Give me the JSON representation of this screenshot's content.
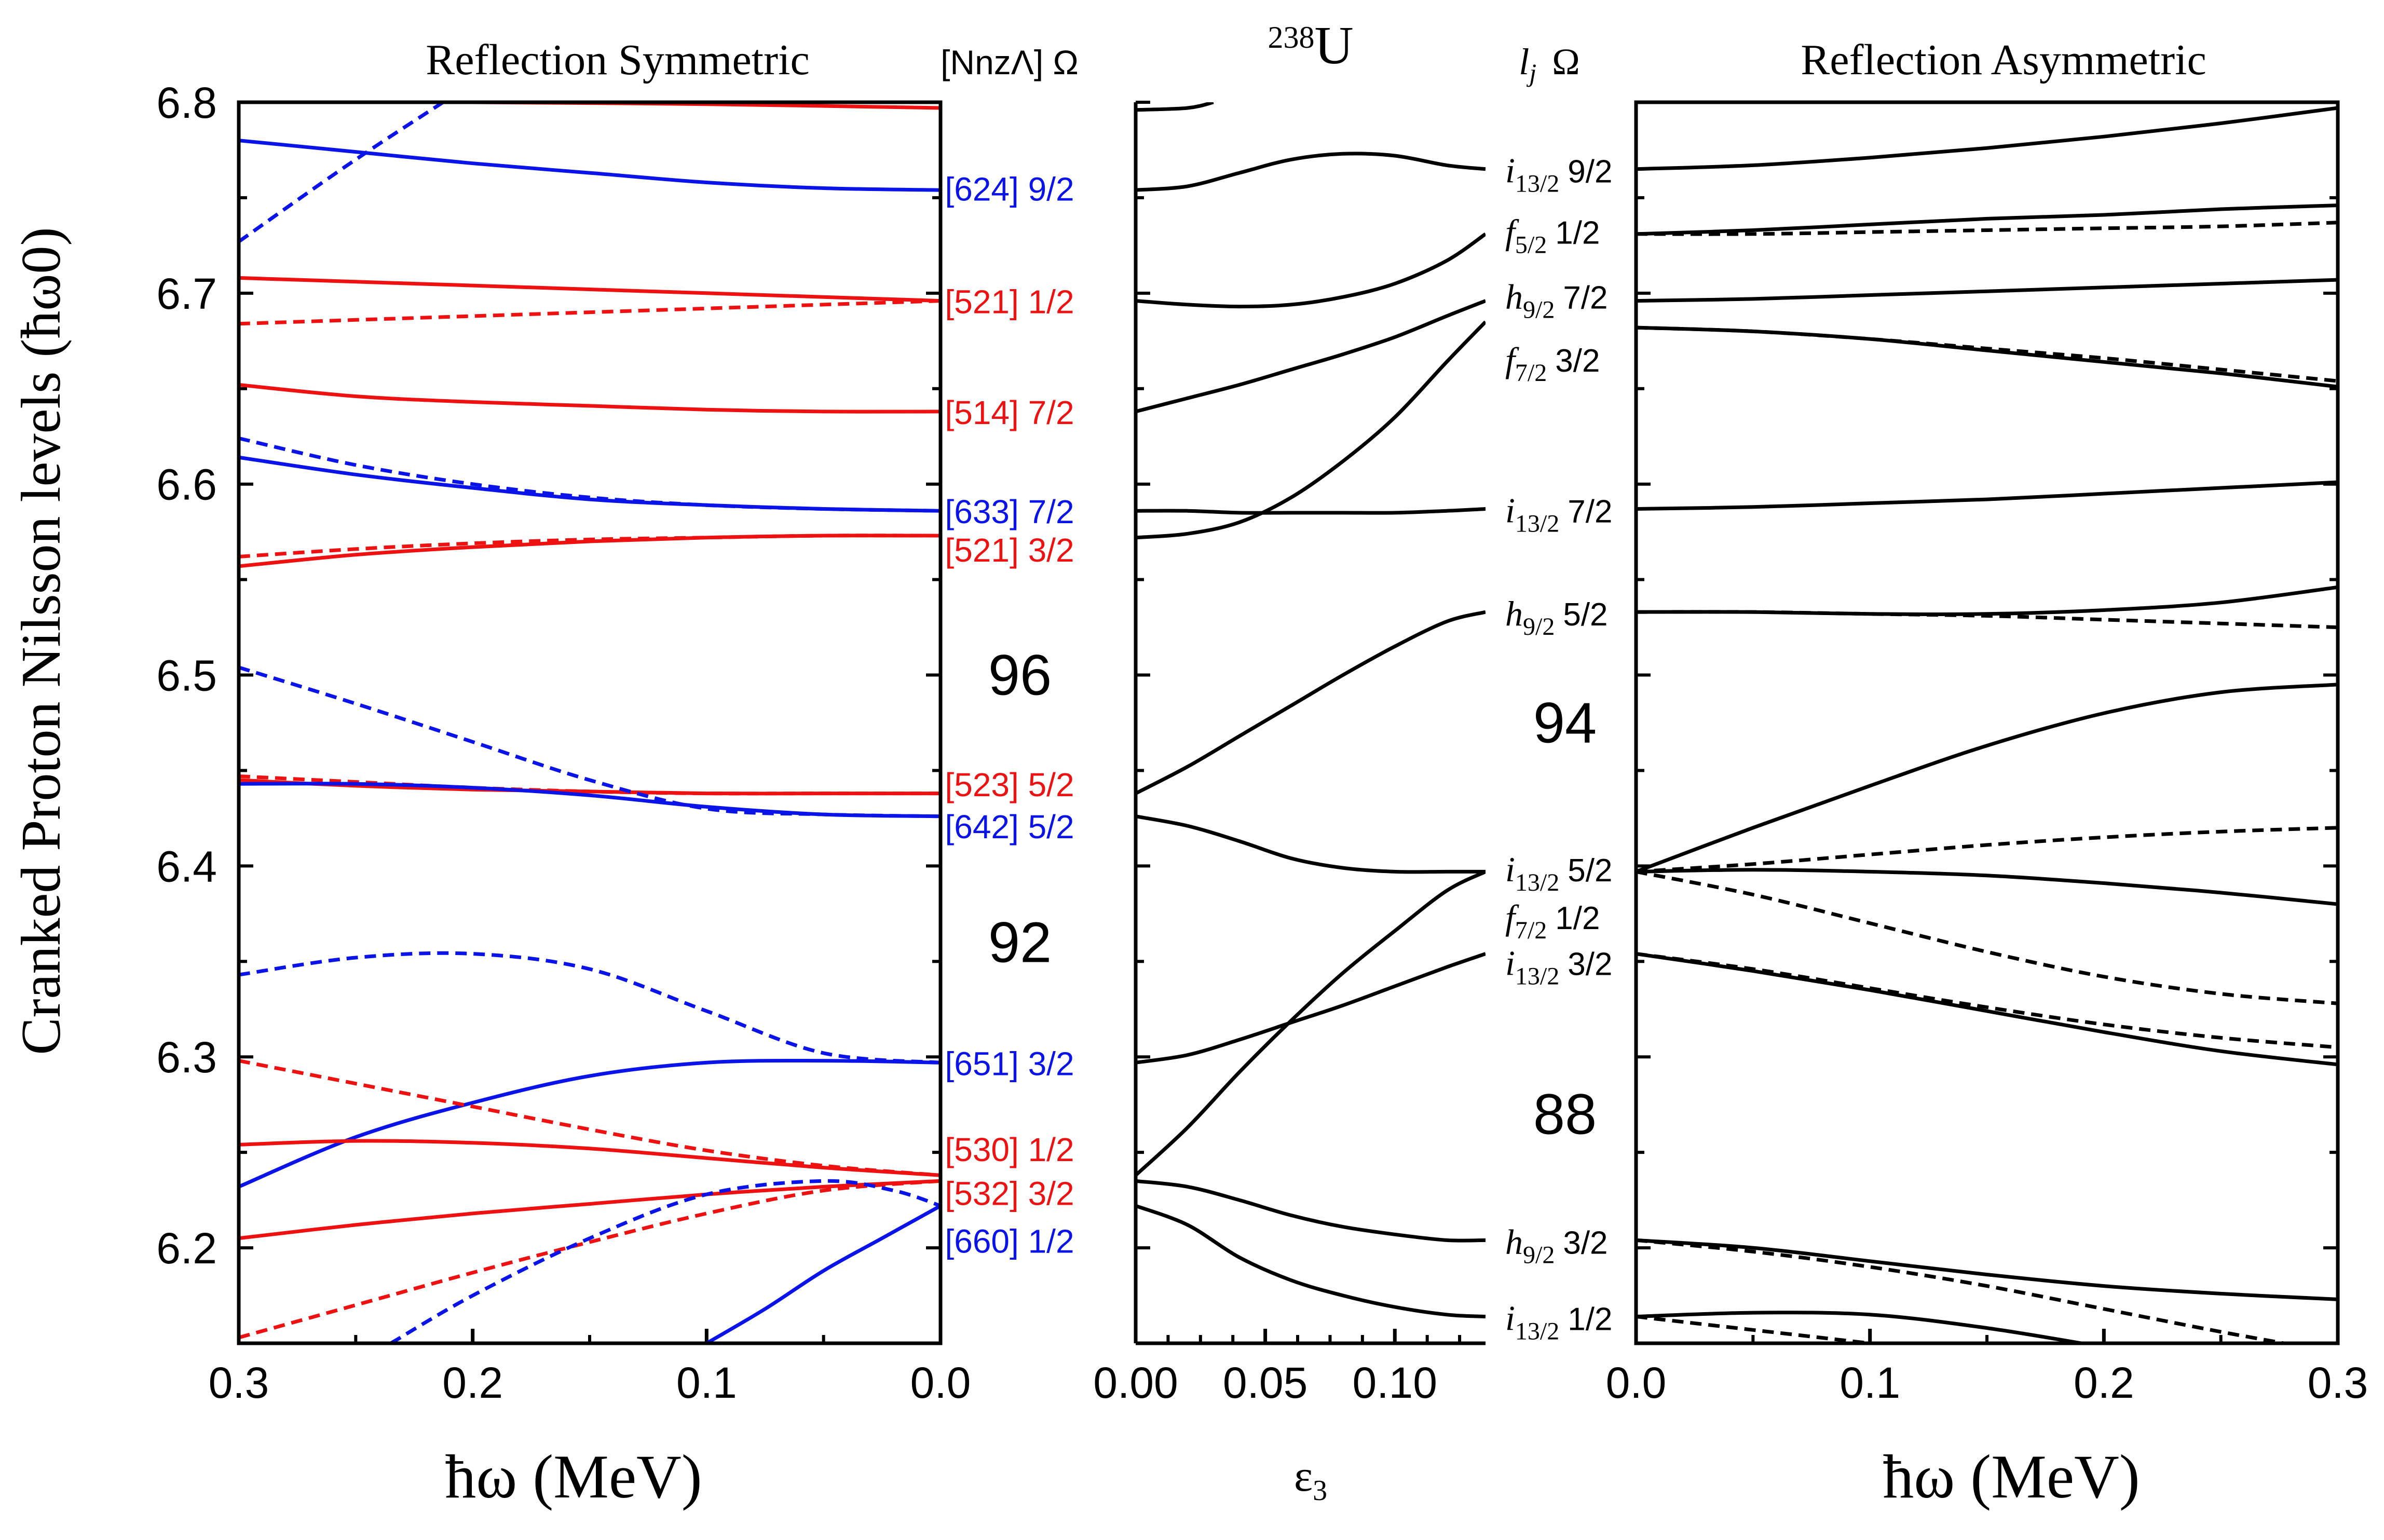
{
  "colors": {
    "blue": "#0a14e8",
    "red": "#ee1111",
    "black": "#000000"
  },
  "chart_data": [
    {
      "id": "symmetric",
      "type": "line",
      "title": "Reflection Symmetric",
      "xlabel": "ħω (MeV)",
      "ylabel": "Cranked Proton Nilsson levels (ħω0)",
      "xlim": [
        0.3,
        0.0
      ],
      "ylim": [
        6.15,
        6.8
      ],
      "xticks": [
        "0.3",
        "0.2",
        "0.1",
        "0.0"
      ],
      "yticks": [
        "6.2",
        "6.3",
        "6.4",
        "6.5",
        "6.6",
        "6.7",
        "6.8"
      ],
      "x": [
        0.3,
        0.25,
        0.2,
        0.15,
        0.1,
        0.05,
        0.0
      ],
      "column_header": "[NnzΛ] Ω",
      "magic_numbers": [
        {
          "text": "96",
          "y": 6.5
        },
        {
          "text": "92",
          "y": 6.36
        }
      ],
      "series": [
        {
          "name": "[624] 9/2 solid",
          "color": "blue",
          "style": "solid",
          "y": [
            6.78,
            6.774,
            6.768,
            6.763,
            6.758,
            6.755,
            6.754
          ]
        },
        {
          "name": "[624] 9/2 dashed",
          "color": "blue",
          "style": "dashed",
          "x": [
            0.3,
            0.25,
            0.2
          ],
          "y": [
            6.727,
            6.77,
            6.81
          ]
        },
        {
          "name": "red top solid",
          "color": "red",
          "style": "solid",
          "x": [
            0.2,
            0.1,
            0.0
          ],
          "y": [
            6.8,
            6.799,
            6.797
          ]
        },
        {
          "name": "[521] 1/2 solid",
          "color": "red",
          "style": "solid",
          "y": [
            6.708,
            6.706,
            6.704,
            6.702,
            6.7,
            6.698,
            6.696
          ]
        },
        {
          "name": "[521] 1/2 dashed",
          "color": "red",
          "style": "dashed",
          "y": [
            6.684,
            6.686,
            6.688,
            6.69,
            6.692,
            6.694,
            6.696
          ]
        },
        {
          "name": "[514] 7/2 solid",
          "color": "red",
          "style": "solid",
          "y": [
            6.652,
            6.646,
            6.643,
            6.641,
            6.639,
            6.638,
            6.638
          ]
        },
        {
          "name": "[633] 7/2 solid",
          "color": "blue",
          "style": "solid",
          "y": [
            6.614,
            6.605,
            6.598,
            6.592,
            6.589,
            6.587,
            6.586
          ]
        },
        {
          "name": "[633] 7/2 dashed",
          "color": "blue",
          "style": "dashed",
          "y": [
            6.624,
            6.61,
            6.6,
            6.593,
            6.589,
            6.587,
            6.586
          ]
        },
        {
          "name": "[521] 3/2 solid",
          "color": "red",
          "style": "solid",
          "y": [
            6.557,
            6.563,
            6.567,
            6.57,
            6.572,
            6.573,
            6.573
          ]
        },
        {
          "name": "[521] 3/2 dashed",
          "color": "red",
          "style": "dashed",
          "y": [
            6.562,
            6.566,
            6.569,
            6.571,
            6.572,
            6.573,
            6.573
          ]
        },
        {
          "name": "[523] 5/2 solid",
          "color": "red",
          "style": "solid",
          "y": [
            6.445,
            6.442,
            6.44,
            6.439,
            6.438,
            6.438,
            6.438
          ]
        },
        {
          "name": "[523] 5/2 dashed",
          "color": "red",
          "style": "dashed",
          "y": [
            6.447,
            6.444,
            6.441,
            6.439,
            6.438,
            6.438,
            6.438
          ]
        },
        {
          "name": "[642] 5/2 solid",
          "color": "blue",
          "style": "solid",
          "y": [
            6.443,
            6.443,
            6.441,
            6.437,
            6.431,
            6.427,
            6.426
          ]
        },
        {
          "name": "[642] 5/2 dashed",
          "color": "blue",
          "style": "dashed",
          "y": [
            6.504,
            6.485,
            6.465,
            6.445,
            6.43,
            6.427,
            6.426
          ]
        },
        {
          "name": "[651] 3/2 solid",
          "color": "blue",
          "style": "solid",
          "y": [
            6.232,
            6.258,
            6.276,
            6.29,
            6.297,
            6.298,
            6.297
          ]
        },
        {
          "name": "[651] 3/2 dashed",
          "color": "blue",
          "style": "dashed",
          "y": [
            6.343,
            6.352,
            6.354,
            6.346,
            6.324,
            6.302,
            6.297
          ]
        },
        {
          "name": "[530] 1/2 solid",
          "color": "red",
          "style": "solid",
          "y": [
            6.254,
            6.256,
            6.255,
            6.252,
            6.247,
            6.242,
            6.238
          ]
        },
        {
          "name": "[530] 1/2 dashed",
          "color": "red",
          "style": "dashed",
          "y": [
            6.298,
            6.286,
            6.274,
            6.262,
            6.251,
            6.243,
            6.238
          ]
        },
        {
          "name": "[532] 3/2 solid",
          "color": "red",
          "style": "solid",
          "y": [
            6.205,
            6.212,
            6.218,
            6.223,
            6.228,
            6.232,
            6.235
          ]
        },
        {
          "name": "[532] 3/2 dashed",
          "color": "red",
          "style": "dashed",
          "y": [
            6.153,
            6.17,
            6.187,
            6.203,
            6.218,
            6.23,
            6.235
          ]
        },
        {
          "name": "[660] 1/2 dashed",
          "color": "blue",
          "style": "dashed",
          "x": [
            0.235,
            0.2,
            0.15,
            0.1,
            0.05,
            0.02,
            0.0
          ],
          "y": [
            6.15,
            6.175,
            6.205,
            6.228,
            6.235,
            6.23,
            6.222
          ]
        },
        {
          "name": "[660] 1/2 solid",
          "color": "blue",
          "style": "solid",
          "x": [
            0.1,
            0.075,
            0.05,
            0.025,
            0.0
          ],
          "y": [
            6.15,
            6.168,
            6.188,
            6.205,
            6.222
          ]
        }
      ],
      "level_labels": [
        {
          "text": "[624] 9/2",
          "color": "blue",
          "y": 6.755
        },
        {
          "text": "[521] 1/2",
          "color": "red",
          "y": 6.696
        },
        {
          "text": "[514] 7/2",
          "color": "red",
          "y": 6.638
        },
        {
          "text": "[633] 7/2",
          "color": "blue",
          "y": 6.586
        },
        {
          "text": "[521] 3/2",
          "color": "red",
          "y": 6.566
        },
        {
          "text": "[523] 5/2",
          "color": "red",
          "y": 6.443
        },
        {
          "text": "[642] 5/2",
          "color": "blue",
          "y": 6.421
        },
        {
          "text": "[651] 3/2",
          "color": "blue",
          "y": 6.297
        },
        {
          "text": "[530] 1/2",
          "color": "red",
          "y": 6.252
        },
        {
          "text": "[532] 3/2",
          "color": "red",
          "y": 6.229
        },
        {
          "text": "[660] 1/2",
          "color": "blue",
          "y": 6.204
        }
      ]
    },
    {
      "id": "octupole",
      "type": "line",
      "title": "238U",
      "title_super": "238",
      "title_main": "U",
      "xlabel": "ε3",
      "xlabel_main": "ε",
      "xlabel_sub": "3",
      "xlim": [
        0.0,
        0.135
      ],
      "ylim": [
        6.15,
        6.8
      ],
      "xticks": [
        "0.00",
        "0.05",
        "0.10"
      ],
      "x": [
        0.0,
        0.02,
        0.04,
        0.06,
        0.08,
        0.1,
        0.12,
        0.135
      ],
      "series": [
        {
          "name": "top",
          "x": [
            0.0,
            0.02,
            0.03
          ],
          "y": [
            6.796,
            6.797,
            6.8
          ]
        },
        {
          "name": "i13/2 9/2",
          "y": [
            6.754,
            6.756,
            6.763,
            6.77,
            6.773,
            6.772,
            6.767,
            6.765
          ]
        },
        {
          "name": "f5/2 1/2",
          "y": [
            6.696,
            6.694,
            6.693,
            6.694,
            6.698,
            6.705,
            6.717,
            6.731
          ]
        },
        {
          "name": "h9/2 7/2",
          "y": [
            6.638,
            6.645,
            6.652,
            6.66,
            6.668,
            6.677,
            6.688,
            6.696
          ]
        },
        {
          "name": "f7/2 3/2",
          "y": [
            6.572,
            6.574,
            6.58,
            6.593,
            6.612,
            6.635,
            6.664,
            6.685
          ]
        },
        {
          "name": "i13/2 7/2",
          "y": [
            6.586,
            6.586,
            6.585,
            6.585,
            6.585,
            6.585,
            6.586,
            6.587
          ]
        },
        {
          "name": "h9/2 5/2",
          "y": [
            6.438,
            6.452,
            6.468,
            6.484,
            6.5,
            6.515,
            6.528,
            6.533
          ]
        },
        {
          "name": "i13/2 5/2",
          "y": [
            6.426,
            6.421,
            6.413,
            6.404,
            6.399,
            6.397,
            6.397,
            6.397
          ]
        },
        {
          "name": "i13/2 3/2",
          "y": [
            6.297,
            6.301,
            6.309,
            6.318,
            6.327,
            6.337,
            6.347,
            6.354
          ]
        },
        {
          "name": "f7/2 1/2",
          "y": [
            6.238,
            6.263,
            6.292,
            6.319,
            6.344,
            6.366,
            6.387,
            6.397
          ]
        },
        {
          "name": "h9/2 3/2",
          "y": [
            6.235,
            6.232,
            6.225,
            6.217,
            6.211,
            6.207,
            6.204,
            6.204
          ]
        },
        {
          "name": "i13/2 1/2",
          "y": [
            6.222,
            6.212,
            6.195,
            6.183,
            6.175,
            6.169,
            6.165,
            6.164
          ]
        }
      ]
    },
    {
      "id": "asymmetric",
      "type": "line",
      "title": "Reflection Asymmetric",
      "xlabel": "ħω (MeV)",
      "xlim": [
        0.0,
        0.3
      ],
      "ylim": [
        6.15,
        6.8
      ],
      "xticks": [
        "0.0",
        "0.1",
        "0.2",
        "0.3"
      ],
      "x": [
        0.0,
        0.05,
        0.1,
        0.15,
        0.2,
        0.25,
        0.3
      ],
      "column_header_main": "l",
      "column_header_sub": "j",
      "column_header_omega": "Ω",
      "magic_numbers": [
        {
          "text": "94",
          "y": 6.475
        },
        {
          "text": "88",
          "y": 6.27
        }
      ],
      "series": [
        {
          "name": "i13/2 9/2",
          "style": "solid",
          "y": [
            6.765,
            6.767,
            6.771,
            6.776,
            6.782,
            6.789,
            6.797
          ]
        },
        {
          "name": "f5/2 1/2 a",
          "style": "solid",
          "y": [
            6.731,
            6.733,
            6.736,
            6.739,
            6.741,
            6.744,
            6.746
          ]
        },
        {
          "name": "f5/2 1/2 b",
          "style": "dashed",
          "y": [
            6.731,
            6.731,
            6.732,
            6.733,
            6.734,
            6.735,
            6.737
          ]
        },
        {
          "name": "h9/2 7/2",
          "style": "solid",
          "y": [
            6.696,
            6.697,
            6.699,
            6.701,
            6.703,
            6.705,
            6.707
          ]
        },
        {
          "name": "f7/2 3/2 a",
          "style": "solid",
          "y": [
            6.682,
            6.68,
            6.676,
            6.67,
            6.664,
            6.658,
            6.651
          ]
        },
        {
          "name": "f7/2 3/2 b",
          "style": "dashed",
          "y": [
            6.682,
            6.68,
            6.676,
            6.671,
            6.666,
            6.66,
            6.654
          ]
        },
        {
          "name": "i13/2 7/2",
          "style": "solid",
          "y": [
            6.587,
            6.588,
            6.59,
            6.592,
            6.595,
            6.598,
            6.601
          ]
        },
        {
          "name": "h9/2 5/2 a",
          "style": "solid",
          "y": [
            6.533,
            6.533,
            6.532,
            6.532,
            6.534,
            6.538,
            6.546
          ]
        },
        {
          "name": "h9/2 5/2 b",
          "style": "dashed",
          "y": [
            6.533,
            6.533,
            6.532,
            6.531,
            6.529,
            6.527,
            6.525
          ]
        },
        {
          "name": "i13/2 5/2 a",
          "style": "solid",
          "y": [
            6.397,
            6.42,
            6.442,
            6.463,
            6.48,
            6.491,
            6.495
          ]
        },
        {
          "name": "i13/2 5/2 b",
          "style": "dashed",
          "y": [
            6.397,
            6.401,
            6.406,
            6.411,
            6.415,
            6.418,
            6.42
          ]
        },
        {
          "name": "f7/2 1/2 a",
          "style": "solid",
          "y": [
            6.397,
            6.398,
            6.397,
            6.395,
            6.391,
            6.386,
            6.38
          ]
        },
        {
          "name": "f7/2 1/2 b",
          "style": "dashed",
          "y": [
            6.397,
            6.385,
            6.37,
            6.355,
            6.342,
            6.333,
            6.328
          ]
        },
        {
          "name": "i13/2 3/2 a",
          "style": "solid",
          "y": [
            6.354,
            6.345,
            6.335,
            6.324,
            6.313,
            6.303,
            6.296
          ]
        },
        {
          "name": "i13/2 3/2 b",
          "style": "dashed",
          "y": [
            6.354,
            6.346,
            6.336,
            6.326,
            6.317,
            6.31,
            6.305
          ]
        },
        {
          "name": "h9/2 3/2 a",
          "style": "solid",
          "y": [
            6.204,
            6.2,
            6.193,
            6.186,
            6.18,
            6.176,
            6.173
          ]
        },
        {
          "name": "h9/2 3/2 b",
          "style": "dashed",
          "y": [
            6.204,
            6.198,
            6.19,
            6.18,
            6.168,
            6.156,
            6.145
          ]
        },
        {
          "name": "i13/2 1/2 a",
          "style": "solid",
          "x": [
            0.0,
            0.05,
            0.1,
            0.15,
            0.2
          ],
          "y": [
            6.164,
            6.166,
            6.165,
            6.158,
            6.148
          ]
        },
        {
          "name": "i13/2 1/2 b",
          "style": "dashed",
          "x": [
            0.0,
            0.05,
            0.1,
            0.15
          ],
          "y": [
            6.164,
            6.157,
            6.15,
            6.143
          ]
        }
      ],
      "level_labels": [
        {
          "l": "i",
          "j": "13/2",
          "omega": "9/2",
          "y": 6.765
        },
        {
          "l": "f",
          "j": "5/2",
          "omega": "1/2",
          "y": 6.733
        },
        {
          "l": "h",
          "j": "9/2",
          "omega": "7/2",
          "y": 6.699
        },
        {
          "l": "f",
          "j": "7/2",
          "omega": "3/2",
          "y": 6.666
        },
        {
          "l": "i",
          "j": "13/2",
          "omega": "7/2",
          "y": 6.587
        },
        {
          "l": "h",
          "j": "9/2",
          "omega": "5/2",
          "y": 6.533
        },
        {
          "l": "i",
          "j": "13/2",
          "omega": "5/2",
          "y": 6.399
        },
        {
          "l": "f",
          "j": "7/2",
          "omega": "1/2",
          "y": 6.374
        },
        {
          "l": "i",
          "j": "13/2",
          "omega": "3/2",
          "y": 6.35
        },
        {
          "l": "h",
          "j": "9/2",
          "omega": "3/2",
          "y": 6.204
        },
        {
          "l": "i",
          "j": "13/2",
          "omega": "1/2",
          "y": 6.164
        }
      ]
    }
  ]
}
